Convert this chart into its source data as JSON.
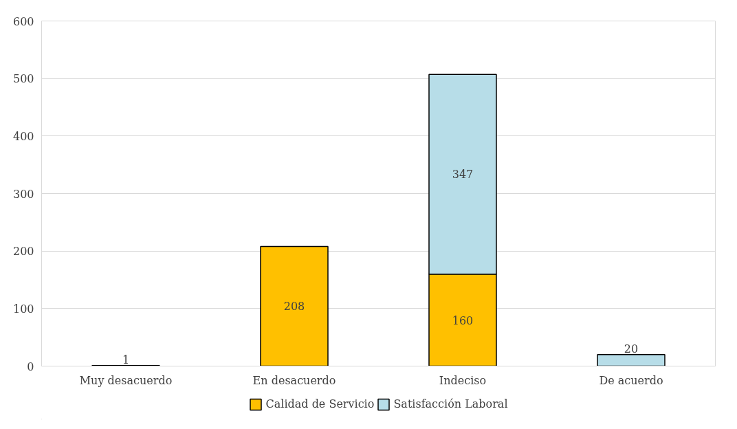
{
  "chart_data": {
    "type": "bar",
    "stacked": true,
    "categories": [
      "Muy desacuerdo",
      "En desacuerdo",
      "Indeciso",
      "De acuerdo"
    ],
    "series": [
      {
        "name": "Calidad de Servicio",
        "color": "#ffc000",
        "values": [
          1,
          208,
          160,
          null
        ]
      },
      {
        "name": "Satisfacción Laboral",
        "color": "#b7dde8",
        "values": [
          null,
          null,
          347,
          20
        ]
      }
    ],
    "ylim": [
      0,
      600
    ],
    "yticks": [
      0,
      100,
      200,
      300,
      400,
      500,
      600
    ],
    "grid": "y",
    "legend": "bottom",
    "data_labels": true
  }
}
